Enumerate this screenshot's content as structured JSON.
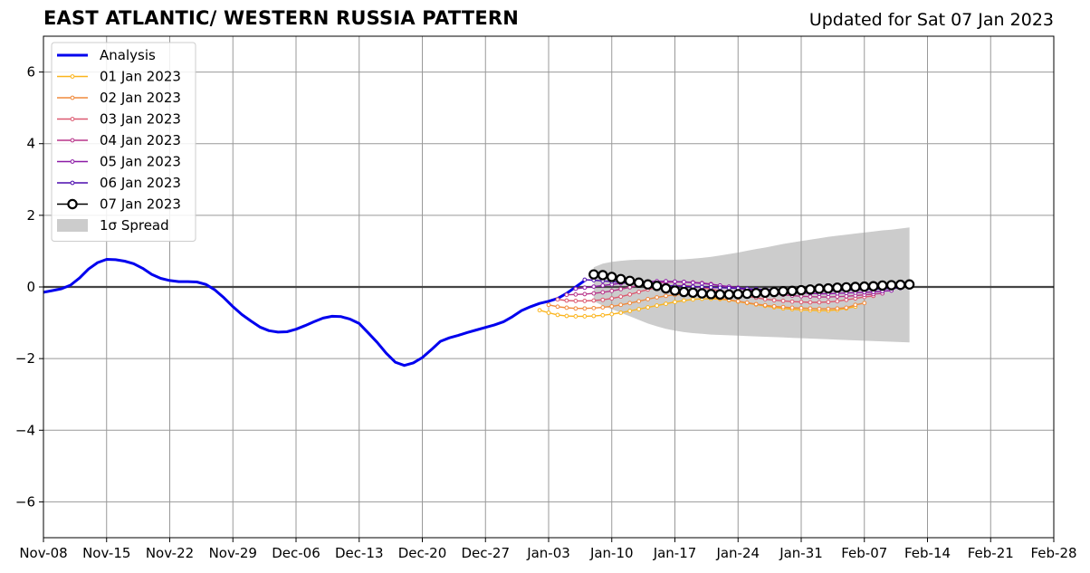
{
  "header": {
    "title": "EAST ATLANTIC/ WESTERN RUSSIA PATTERN",
    "updated": "Updated for Sat 07 Jan 2023"
  },
  "chart_data": {
    "type": "line",
    "title": "EAST ATLANTIC/ WESTERN RUSSIA PATTERN",
    "subtitle": "Updated for Sat 07 Jan 2023",
    "xlabel": "",
    "ylabel": "",
    "x_axis": {
      "start": "2022-11-08",
      "end": "2023-02-28",
      "tick_labels": [
        "Nov-08",
        "Nov-15",
        "Nov-22",
        "Nov-29",
        "Dec-06",
        "Dec-13",
        "Dec-20",
        "Dec-27",
        "Jan-03",
        "Jan-10",
        "Jan-17",
        "Jan-24",
        "Jan-31",
        "Feb-07",
        "Feb-14",
        "Feb-21",
        "Feb-28"
      ]
    },
    "ylim": [
      -7,
      7
    ],
    "y_ticks": [
      6,
      4,
      2,
      0,
      -2,
      -4,
      -6
    ],
    "y_tick_labels": [
      "6",
      "4",
      "2",
      "0",
      "−2",
      "−4",
      "−6"
    ],
    "grid": true,
    "legend_position": "top-left",
    "legend": [
      {
        "label": "Analysis",
        "kind": "line",
        "color": "#0000ee"
      },
      {
        "label": "01 Jan 2023",
        "kind": "dotline",
        "color": "#fbb41c"
      },
      {
        "label": "02 Jan 2023",
        "kind": "dotline",
        "color": "#f08a3c"
      },
      {
        "label": "03 Jan 2023",
        "kind": "dotline",
        "color": "#dc5870"
      },
      {
        "label": "04 Jan 2023",
        "kind": "dotline",
        "color": "#b8358a"
      },
      {
        "label": "05 Jan 2023",
        "kind": "dotline",
        "color": "#8c1aa6"
      },
      {
        "label": "06 Jan 2023",
        "kind": "dotline",
        "color": "#4c0cae"
      },
      {
        "label": "07 Jan 2023",
        "kind": "circle",
        "color": "#000000"
      },
      {
        "label": "1σ Spread",
        "kind": "patch",
        "color": "#cccccc"
      }
    ],
    "series": [
      {
        "name": "Analysis",
        "color": "#0000ee",
        "points": [
          [
            "2022-11-08",
            -0.15
          ],
          [
            "2022-11-09",
            -0.1
          ],
          [
            "2022-11-10",
            -0.05
          ],
          [
            "2022-11-11",
            0.05
          ],
          [
            "2022-11-12",
            0.25
          ],
          [
            "2022-11-13",
            0.5
          ],
          [
            "2022-11-14",
            0.68
          ],
          [
            "2022-11-15",
            0.77
          ],
          [
            "2022-11-16",
            0.76
          ],
          [
            "2022-11-17",
            0.72
          ],
          [
            "2022-11-18",
            0.65
          ],
          [
            "2022-11-19",
            0.52
          ],
          [
            "2022-11-20",
            0.35
          ],
          [
            "2022-11-21",
            0.24
          ],
          [
            "2022-11-22",
            0.18
          ],
          [
            "2022-11-23",
            0.15
          ],
          [
            "2022-11-24",
            0.15
          ],
          [
            "2022-11-25",
            0.14
          ],
          [
            "2022-11-26",
            0.07
          ],
          [
            "2022-11-27",
            -0.08
          ],
          [
            "2022-11-28",
            -0.3
          ],
          [
            "2022-11-29",
            -0.55
          ],
          [
            "2022-11-30",
            -0.77
          ],
          [
            "2022-12-01",
            -0.95
          ],
          [
            "2022-12-02",
            -1.12
          ],
          [
            "2022-12-03",
            -1.22
          ],
          [
            "2022-12-04",
            -1.26
          ],
          [
            "2022-12-05",
            -1.25
          ],
          [
            "2022-12-06",
            -1.18
          ],
          [
            "2022-12-07",
            -1.08
          ],
          [
            "2022-12-08",
            -0.97
          ],
          [
            "2022-12-09",
            -0.87
          ],
          [
            "2022-12-10",
            -0.82
          ],
          [
            "2022-12-11",
            -0.83
          ],
          [
            "2022-12-12",
            -0.9
          ],
          [
            "2022-12-13",
            -1.02
          ],
          [
            "2022-12-14",
            -1.28
          ],
          [
            "2022-12-15",
            -1.55
          ],
          [
            "2022-12-16",
            -1.85
          ],
          [
            "2022-12-17",
            -2.1
          ],
          [
            "2022-12-18",
            -2.19
          ],
          [
            "2022-12-19",
            -2.12
          ],
          [
            "2022-12-20",
            -1.97
          ],
          [
            "2022-12-21",
            -1.75
          ],
          [
            "2022-12-22",
            -1.52
          ],
          [
            "2022-12-23",
            -1.42
          ],
          [
            "2022-12-24",
            -1.35
          ],
          [
            "2022-12-25",
            -1.27
          ],
          [
            "2022-12-26",
            -1.2
          ],
          [
            "2022-12-27",
            -1.13
          ],
          [
            "2022-12-28",
            -1.06
          ],
          [
            "2022-12-29",
            -0.97
          ],
          [
            "2022-12-30",
            -0.83
          ],
          [
            "2022-12-31",
            -0.66
          ],
          [
            "2023-01-01",
            -0.55
          ],
          [
            "2023-01-02",
            -0.46
          ],
          [
            "2023-01-03",
            -0.4
          ],
          [
            "2023-01-04",
            -0.32
          ],
          [
            "2023-01-05",
            -0.18
          ],
          [
            "2023-01-06",
            0.0
          ],
          [
            "2023-01-07",
            0.18
          ]
        ]
      },
      {
        "name": "01 Jan 2023",
        "color": "#fbb41c",
        "start": "2023-01-02",
        "values": [
          -0.65,
          -0.72,
          -0.78,
          -0.81,
          -0.82,
          -0.82,
          -0.81,
          -0.79,
          -0.76,
          -0.72,
          -0.67,
          -0.62,
          -0.57,
          -0.52,
          -0.47,
          -0.42,
          -0.38,
          -0.35,
          -0.33,
          -0.33,
          -0.34,
          -0.37,
          -0.41,
          -0.45,
          -0.49,
          -0.53,
          -0.57,
          -0.6,
          -0.62,
          -0.64,
          -0.65,
          -0.66,
          -0.66,
          -0.64,
          -0.6,
          -0.55
        ]
      },
      {
        "name": "02 Jan 2023",
        "color": "#f08a3c",
        "start": "2023-01-03",
        "values": [
          -0.5,
          -0.55,
          -0.58,
          -0.6,
          -0.6,
          -0.59,
          -0.57,
          -0.54,
          -0.5,
          -0.45,
          -0.4,
          -0.34,
          -0.29,
          -0.25,
          -0.22,
          -0.21,
          -0.22,
          -0.24,
          -0.28,
          -0.32,
          -0.36,
          -0.4,
          -0.44,
          -0.48,
          -0.51,
          -0.54,
          -0.56,
          -0.58,
          -0.59,
          -0.6,
          -0.61,
          -0.61,
          -0.6,
          -0.58,
          -0.5,
          -0.45
        ]
      },
      {
        "name": "03 Jan 2023",
        "color": "#dc5870",
        "start": "2023-01-04",
        "values": [
          -0.35,
          -0.38,
          -0.39,
          -0.39,
          -0.38,
          -0.36,
          -0.32,
          -0.27,
          -0.21,
          -0.14,
          -0.07,
          -0.02,
          0.02,
          0.04,
          0.04,
          0.02,
          -0.02,
          -0.06,
          -0.11,
          -0.16,
          -0.21,
          -0.26,
          -0.3,
          -0.34,
          -0.37,
          -0.39,
          -0.41,
          -0.42,
          -0.43,
          -0.43,
          -0.42,
          -0.4,
          -0.36,
          -0.32,
          -0.28,
          -0.25
        ]
      },
      {
        "name": "04 Jan 2023",
        "color": "#b8358a",
        "start": "2023-01-05",
        "values": [
          -0.22,
          -0.21,
          -0.2,
          -0.18,
          -0.15,
          -0.11,
          -0.06,
          -0.01,
          0.04,
          0.08,
          0.11,
          0.13,
          0.14,
          0.14,
          0.13,
          0.11,
          0.08,
          0.04,
          0.0,
          -0.04,
          -0.08,
          -0.12,
          -0.16,
          -0.19,
          -0.22,
          -0.24,
          -0.26,
          -0.27,
          -0.28,
          -0.28,
          -0.27,
          -0.26,
          -0.24,
          -0.22,
          -0.2,
          -0.18
        ]
      },
      {
        "name": "05 Jan 2023",
        "color": "#8c1aa6",
        "start": "2023-01-06",
        "values": [
          -0.05,
          -0.02,
          0.01,
          0.04,
          0.07,
          0.1,
          0.12,
          0.14,
          0.15,
          0.16,
          0.16,
          0.15,
          0.14,
          0.12,
          0.1,
          0.07,
          0.04,
          0.01,
          -0.02,
          -0.05,
          -0.08,
          -0.1,
          -0.12,
          -0.14,
          -0.16,
          -0.17,
          -0.18,
          -0.19,
          -0.19,
          -0.18,
          -0.17,
          -0.16,
          -0.15,
          -0.14,
          -0.12,
          -0.1
        ]
      },
      {
        "name": "06 Jan 2023",
        "color": "#4c0cae",
        "start": "2023-01-07",
        "values": [
          0.2,
          0.19,
          0.17,
          0.15,
          0.13,
          0.1,
          0.08,
          0.06,
          0.05,
          0.04,
          0.03,
          0.02,
          0.01,
          0.0,
          -0.01,
          -0.02,
          -0.03,
          -0.04,
          -0.05,
          -0.06,
          -0.07,
          -0.08,
          -0.09,
          -0.09,
          -0.1,
          -0.1,
          -0.1,
          -0.1,
          -0.1,
          -0.09,
          -0.08,
          -0.07,
          -0.06,
          -0.05,
          -0.04,
          -0.03
        ]
      },
      {
        "name": "07 Jan 2023",
        "color": "#000000",
        "start": "2023-01-08",
        "values": [
          0.35,
          0.33,
          0.28,
          0.22,
          0.17,
          0.12,
          0.07,
          0.03,
          -0.04,
          -0.1,
          -0.14,
          -0.16,
          -0.18,
          -0.2,
          -0.21,
          -0.21,
          -0.2,
          -0.19,
          -0.17,
          -0.16,
          -0.14,
          -0.12,
          -0.11,
          -0.09,
          -0.07,
          -0.05,
          -0.04,
          -0.02,
          -0.01,
          0.0,
          0.01,
          0.02,
          0.04,
          0.05,
          0.06,
          0.07
        ]
      }
    ],
    "spread": {
      "name": "1σ Spread",
      "color": "#cccccc",
      "start": "2023-01-08",
      "upper": [
        0.55,
        0.65,
        0.7,
        0.73,
        0.75,
        0.76,
        0.76,
        0.76,
        0.76,
        0.76,
        0.77,
        0.79,
        0.81,
        0.84,
        0.88,
        0.92,
        0.96,
        1.01,
        1.06,
        1.1,
        1.15,
        1.2,
        1.24,
        1.28,
        1.32,
        1.36,
        1.4,
        1.43,
        1.46,
        1.49,
        1.52,
        1.55,
        1.58,
        1.6,
        1.63,
        1.66
      ],
      "lower": [
        -0.4,
        -0.52,
        -0.62,
        -0.72,
        -0.82,
        -0.92,
        -1.02,
        -1.1,
        -1.17,
        -1.22,
        -1.26,
        -1.29,
        -1.31,
        -1.33,
        -1.34,
        -1.35,
        -1.36,
        -1.37,
        -1.38,
        -1.39,
        -1.4,
        -1.41,
        -1.42,
        -1.43,
        -1.44,
        -1.45,
        -1.46,
        -1.47,
        -1.48,
        -1.49,
        -1.5,
        -1.51,
        -1.52,
        -1.53,
        -1.54,
        -1.55
      ]
    }
  }
}
